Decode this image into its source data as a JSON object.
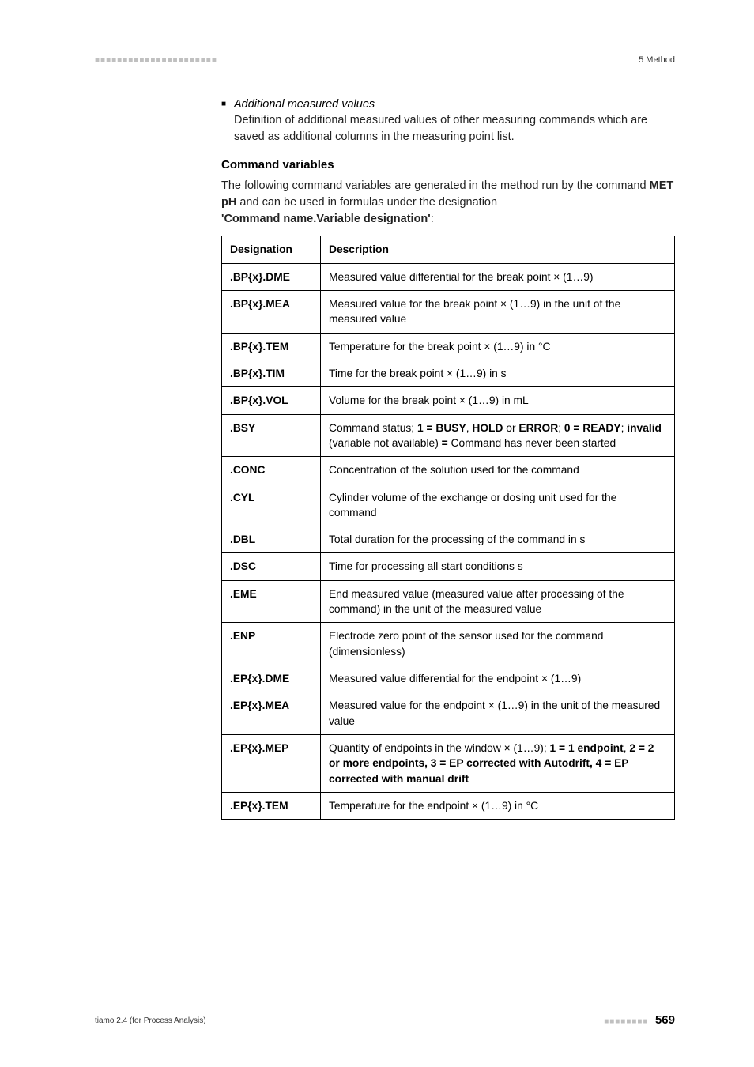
{
  "header": {
    "dashes": "■■■■■■■■■■■■■■■■■■■■■■",
    "right": "5 Method"
  },
  "bullet": {
    "title": "Additional measured values",
    "text": "Definition of additional measured values of other measuring commands which are saved as additional columns in the measuring point list."
  },
  "section_heading": "Command variables",
  "intro_pre": "The following command variables are generated in the method run by the command ",
  "intro_bold1": "MET pH",
  "intro_mid": " and can be used in formulas under the designation ",
  "intro_bold2": "'Command name.Variable designation'",
  "intro_end": ":",
  "table": {
    "col1_header": "Designation",
    "col2_header": "Description",
    "rows": [
      {
        "d": ".BP{x}.DME",
        "desc_pre": "Measured value differential for the break point × (1…9)",
        "desc_bold": "",
        "desc_post": ""
      },
      {
        "d": ".BP{x}.MEA",
        "desc_pre": "Measured value for the break point × (1…9) in the unit of the measured value",
        "desc_bold": "",
        "desc_post": ""
      },
      {
        "d": ".BP{x}.TEM",
        "desc_pre": "Temperature for the break point × (1…9) in °C",
        "desc_bold": "",
        "desc_post": ""
      },
      {
        "d": ".BP{x}.TIM",
        "desc_pre": "Time for the break point × (1…9) in s",
        "desc_bold": "",
        "desc_post": ""
      },
      {
        "d": ".BP{x}.VOL",
        "desc_pre": "Volume for the break point × (1…9) in mL",
        "desc_bold": "",
        "desc_post": ""
      }
    ]
  },
  "bsy": {
    "d": ".BSY",
    "p1": "Command status; ",
    "b1": "1 = BUSY",
    "p2": ", ",
    "b2": "HOLD",
    "p3": " or ",
    "b3": "ERROR",
    "p4": "; ",
    "b4": "0 = READY",
    "p5": "; ",
    "b5": "invalid",
    "p6": " (variable not available) ",
    "b6": "=",
    "p7": " Command has never been started"
  },
  "simple_rows": [
    {
      "d": ".CONC",
      "desc": "Concentration of the solution used for the command"
    },
    {
      "d": ".CYL",
      "desc": "Cylinder volume of the exchange or dosing unit used for the command"
    },
    {
      "d": ".DBL",
      "desc": "Total duration for the processing of the command in s"
    },
    {
      "d": ".DSC",
      "desc": "Time for processing all start conditions s"
    },
    {
      "d": ".EME",
      "desc": "End measured value (measured value after processing of the command) in the unit of the measured value"
    },
    {
      "d": ".ENP",
      "desc": "Electrode zero point of the sensor used for the command (dimensionless)"
    },
    {
      "d": ".EP{x}.DME",
      "desc": "Measured value differential for the endpoint × (1…9)"
    },
    {
      "d": ".EP{x}.MEA",
      "desc": "Measured value for the endpoint × (1…9) in the unit of the measured value"
    }
  ],
  "mep": {
    "d": ".EP{x}.MEP",
    "p1": "Quantity of endpoints in the window × (1…9); ",
    "b1": "1 = 1 endpoint",
    "p2": ", ",
    "b2": "2 = 2 or more endpoints, 3 = EP corrected with Autodrift, 4 = EP corrected with manual drift"
  },
  "last_row": {
    "d": ".EP{x}.TEM",
    "desc": "Temperature for the endpoint × (1…9) in °C"
  },
  "footer": {
    "left": "tiamo 2.4 (for Process Analysis)",
    "dashes": "■■■■■■■■",
    "page": "569"
  }
}
